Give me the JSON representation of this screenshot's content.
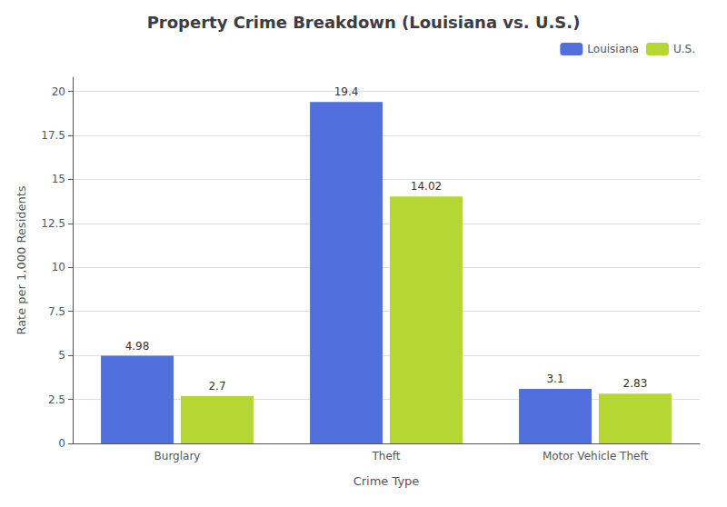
{
  "chart_data": {
    "type": "bar",
    "title": "Property Crime Breakdown (Louisiana vs. U.S.)",
    "xlabel": "Crime Type",
    "ylabel": "Rate per 1,000 Residents",
    "categories": [
      "Burglary",
      "Theft",
      "Motor Vehicle Theft"
    ],
    "series": [
      {
        "name": "Louisiana",
        "values": [
          4.98,
          19.4,
          3.1
        ]
      },
      {
        "name": "U.S.",
        "values": [
          2.7,
          14.02,
          2.83
        ]
      }
    ],
    "ylim": [
      0,
      20.8
    ],
    "yticks": [
      0,
      2.5,
      5,
      7.5,
      10,
      12.5,
      15,
      17.5,
      20
    ],
    "grid": true,
    "legend": "upper right",
    "data_labels": true
  }
}
